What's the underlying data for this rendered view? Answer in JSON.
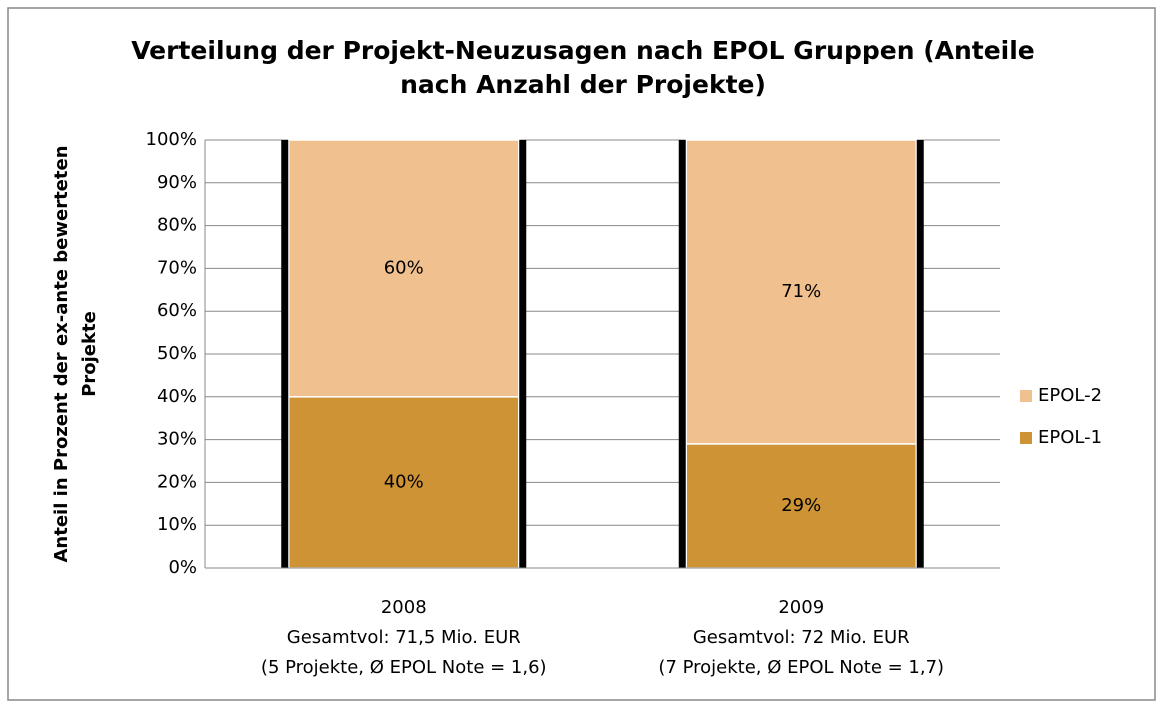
{
  "chart_data": {
    "type": "stacked_bar",
    "title": [
      "Verteilung der Projekt-Neuzusagen nach EPOL Gruppen (Anteile",
      "nach Anzahl der Projekte)"
    ],
    "y_label": [
      "Anteil in Prozent der ex-ante bewerteten",
      "Projekte"
    ],
    "categories": [
      [
        "2008",
        "Gesamtvol: 71,5 Mio. EUR",
        "(5 Projekte, Ø EPOL Note = 1,6)"
      ],
      [
        "2009",
        "Gesamtvol: 72 Mio. EUR",
        "(7 Projekte, Ø EPOL Note = 1,7)"
      ]
    ],
    "series": [
      {
        "name": "EPOL-1",
        "color": "#cd9335",
        "values": [
          40,
          29
        ],
        "value_labels": [
          "40%",
          "29%"
        ]
      },
      {
        "name": "EPOL-2",
        "color": "#f0c08e",
        "values": [
          60,
          71
        ],
        "value_labels": [
          "60%",
          "71%"
        ]
      }
    ],
    "ylim": [
      0,
      100
    ],
    "yticks": [
      {
        "value": 0,
        "label": "0%"
      },
      {
        "value": 10,
        "label": "10%"
      },
      {
        "value": 20,
        "label": "20%"
      },
      {
        "value": 30,
        "label": "30%"
      },
      {
        "value": 40,
        "label": "40%"
      },
      {
        "value": 50,
        "label": "50%"
      },
      {
        "value": 60,
        "label": "60%"
      },
      {
        "value": 70,
        "label": "70%"
      },
      {
        "value": 80,
        "label": "80%"
      },
      {
        "value": 90,
        "label": "90%"
      },
      {
        "value": 100,
        "label": "100%"
      }
    ],
    "grid": true,
    "legend": "right"
  }
}
